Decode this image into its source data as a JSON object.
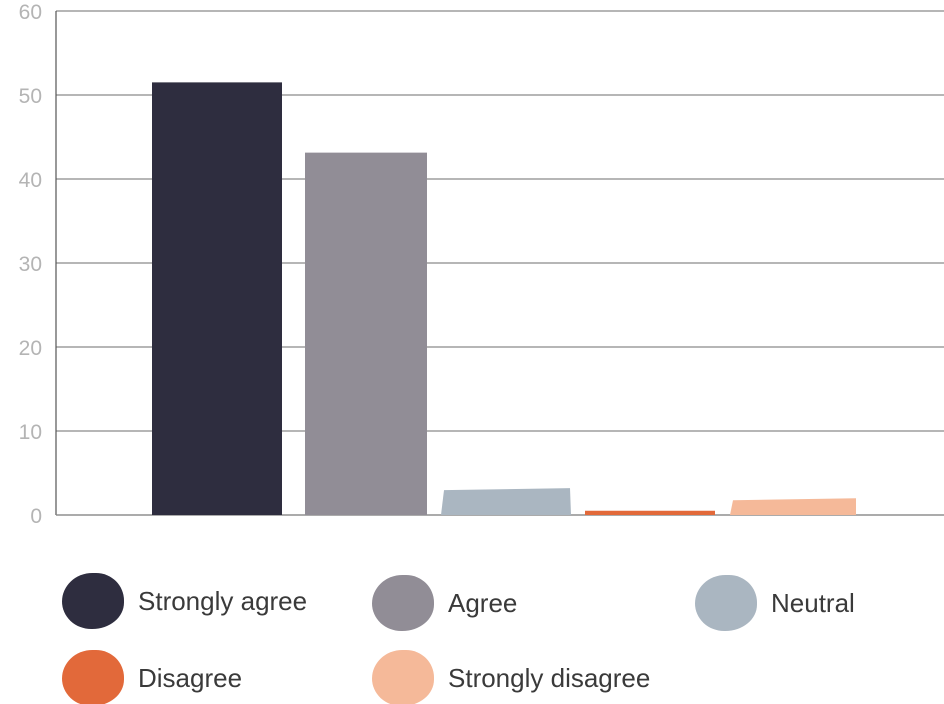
{
  "chart_data": {
    "type": "bar",
    "categories": [
      "Strongly agree",
      "Agree",
      "Neutral",
      "Disagree",
      "Strongly disagree"
    ],
    "values": [
      51.5,
      43.5,
      3.2,
      0.5,
      2.0
    ],
    "colors": [
      "#2e2d3f",
      "#918d96",
      "#aab6c1",
      "#e2693a",
      "#f5b999"
    ],
    "ylim": [
      0,
      60
    ],
    "yticks": [
      0,
      10,
      20,
      30,
      40,
      50,
      60
    ],
    "grid": true,
    "legend_position": "bottom"
  },
  "legend": [
    {
      "label": "Strongly agree",
      "color": "#2e2d3f"
    },
    {
      "label": "Agree",
      "color": "#918d96"
    },
    {
      "label": "Neutral",
      "color": "#aab6c1"
    },
    {
      "label": "Disagree",
      "color": "#e2693a"
    },
    {
      "label": "Strongly disagree",
      "color": "#f5b999"
    }
  ]
}
